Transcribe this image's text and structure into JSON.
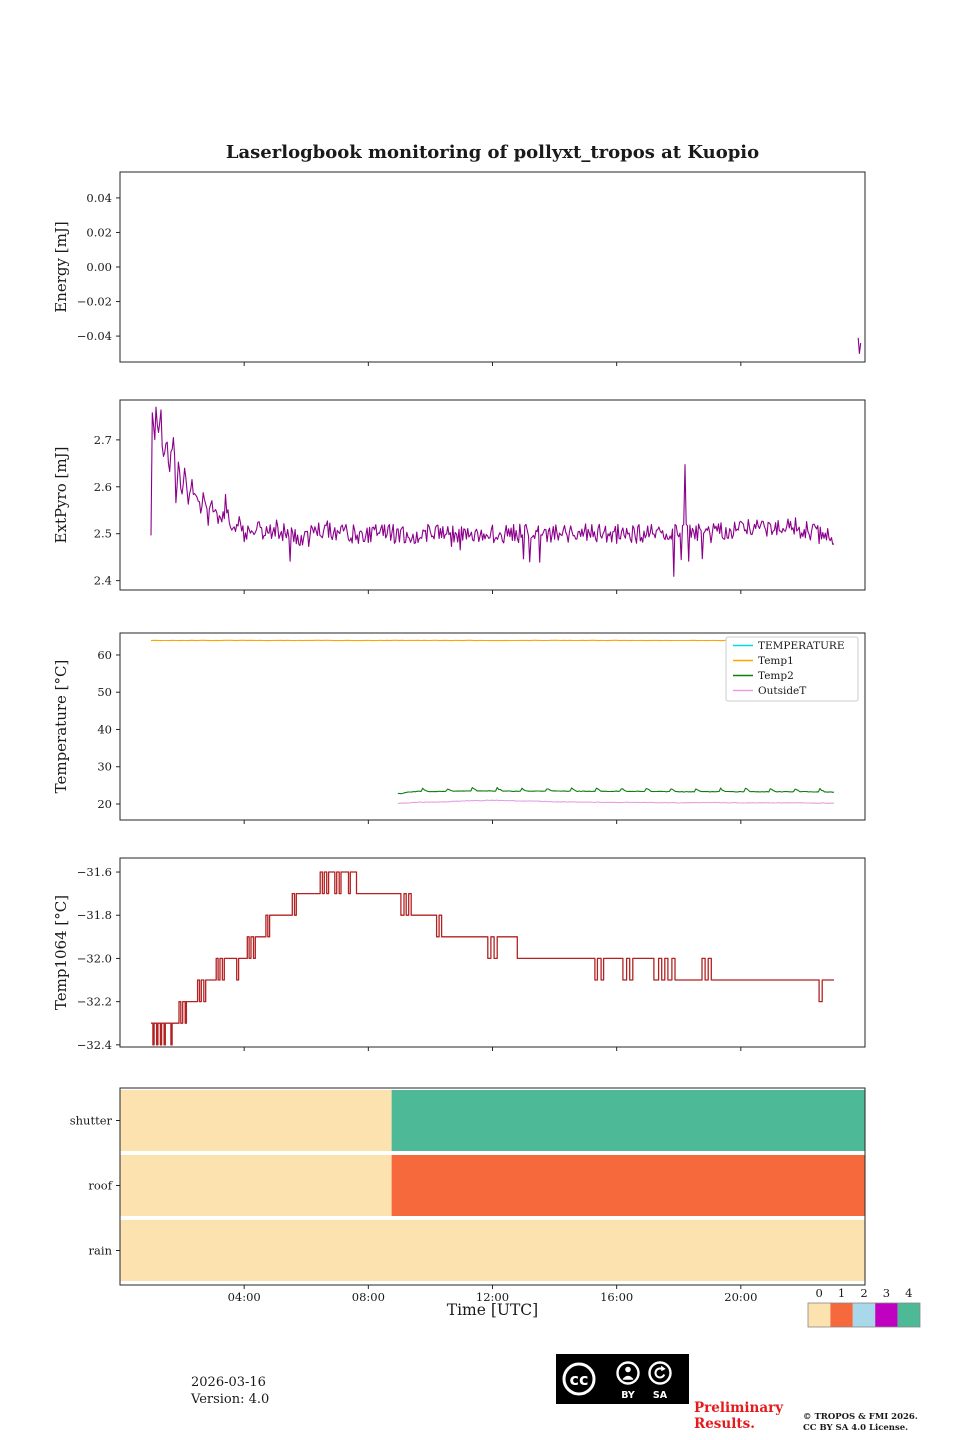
{
  "title": "Laserlogbook monitoring of pollyxt_tropos at Kuopio",
  "x_axis": {
    "label": "Time [UTC]",
    "xlim": [
      0,
      24
    ],
    "ticks": [
      4,
      8,
      12,
      16,
      20
    ],
    "tick_labels": [
      "04:00",
      "08:00",
      "12:00",
      "16:00",
      "20:00"
    ]
  },
  "colors": {
    "frame": "#262626",
    "purple": "#8b008b",
    "firebrick": "#b22222",
    "cyan": "#00dbdb",
    "orange": "#ffa500",
    "green": "#0f7d0f",
    "violet": "#e79fe3",
    "preliminary_red": "#e41a1c",
    "status_values": [
      "#fce2ae",
      "#f5693d",
      "#a8d8ea",
      "#c001c0",
      "#4db997"
    ]
  },
  "chart_data": [
    {
      "type": "line",
      "ylabel": "Energy [mJ]",
      "ylim": [
        -0.055,
        0.055
      ],
      "yticks": [
        0.04,
        0.02,
        0,
        -0.02,
        -0.04
      ],
      "ytick_labels": [
        "0.04",
        "0.02",
        "0.00",
        "−0.02",
        "−0.04"
      ],
      "series": [
        {
          "name": "Energy",
          "color": "#8b008b",
          "points": [
            [
              23.78,
              -0.041
            ],
            [
              23.82,
              -0.05
            ],
            [
              23.86,
              -0.044
            ]
          ]
        }
      ]
    },
    {
      "type": "line",
      "ylabel": "ExtPyro [mJ]",
      "ylim": [
        2.38,
        2.785
      ],
      "yticks": [
        2.7,
        2.6,
        2.5,
        2.4
      ],
      "ytick_labels": [
        "2.7",
        "2.6",
        "2.5",
        "2.4"
      ],
      "series": [
        {
          "name": "ExtPyro",
          "color": "#8b008b",
          "range": [
            1.0,
            23.0
          ],
          "step": 0.04,
          "noise": 0.021,
          "spike": 0.085,
          "anchors": [
            [
              1.0,
              2.5
            ],
            [
              1.03,
              2.78
            ],
            [
              1.1,
              2.7
            ],
            [
              1.16,
              2.76
            ],
            [
              1.24,
              2.72
            ],
            [
              1.3,
              2.77
            ],
            [
              1.4,
              2.66
            ],
            [
              1.5,
              2.71
            ],
            [
              1.6,
              2.63
            ],
            [
              1.7,
              2.71
            ],
            [
              1.8,
              2.61
            ],
            [
              1.9,
              2.65
            ],
            [
              2.0,
              2.59
            ],
            [
              2.1,
              2.63
            ],
            [
              2.2,
              2.58
            ],
            [
              2.3,
              2.62
            ],
            [
              2.4,
              2.57
            ],
            [
              2.5,
              2.6
            ],
            [
              2.6,
              2.55
            ],
            [
              2.7,
              2.58
            ],
            [
              2.85,
              2.53
            ],
            [
              3.0,
              2.56
            ],
            [
              3.2,
              2.52
            ],
            [
              3.4,
              2.55
            ],
            [
              3.6,
              2.51
            ],
            [
              3.8,
              2.53
            ],
            [
              4.0,
              2.5
            ],
            [
              4.3,
              2.52
            ],
            [
              4.6,
              2.5
            ],
            [
              5.0,
              2.51
            ],
            [
              5.5,
              2.5
            ],
            [
              6.0,
              2.49
            ],
            [
              6.5,
              2.51
            ],
            [
              7.0,
              2.5
            ],
            [
              8.0,
              2.5
            ],
            [
              9.0,
              2.5
            ],
            [
              10.0,
              2.5
            ],
            [
              11.0,
              2.5
            ],
            [
              12.0,
              2.5
            ],
            [
              13.0,
              2.5
            ],
            [
              14.0,
              2.5
            ],
            [
              15.0,
              2.5
            ],
            [
              16.0,
              2.5
            ],
            [
              17.0,
              2.5
            ],
            [
              18.0,
              2.5
            ],
            [
              18.16,
              2.5
            ],
            [
              18.2,
              2.63
            ],
            [
              18.24,
              2.5
            ],
            [
              19.0,
              2.5
            ],
            [
              20.0,
              2.51
            ],
            [
              20.5,
              2.52
            ],
            [
              21.0,
              2.51
            ],
            [
              21.5,
              2.52
            ],
            [
              22.0,
              2.51
            ],
            [
              22.5,
              2.5
            ],
            [
              23.0,
              2.49
            ]
          ]
        }
      ]
    },
    {
      "type": "line",
      "ylabel": "Temperature [°C]",
      "ylim": [
        15.7,
        65.9
      ],
      "yticks": [
        60,
        50,
        40,
        30,
        20
      ],
      "ytick_labels": [
        "60",
        "50",
        "40",
        "30",
        "20"
      ],
      "legend": [
        {
          "label": "TEMPERATURE",
          "color": "#00dbdb"
        },
        {
          "label": "Temp1",
          "color": "#ffa500"
        },
        {
          "label": "Temp2",
          "color": "#0f7d0f"
        },
        {
          "label": "OutsideT",
          "color": "#e79fe3"
        }
      ],
      "series": [
        {
          "name": "Temp1",
          "color": "#ffa500",
          "range": [
            1.0,
            23.0
          ],
          "step": 0.1,
          "noise": 0.05,
          "anchors": [
            [
              1,
              63.9
            ],
            [
              23,
              63.9
            ]
          ]
        },
        {
          "name": "Temp2",
          "color": "#0f7d0f",
          "range": [
            8.95,
            23.0
          ],
          "step": 0.05,
          "noise": 0.06,
          "bump": {
            "interval": 0.8,
            "width": 0.2,
            "height": 1.0
          },
          "anchors": [
            [
              8.95,
              22.2
            ],
            [
              9.2,
              23.1
            ],
            [
              9.6,
              23.4
            ],
            [
              10,
              23.3
            ],
            [
              11,
              23.5
            ],
            [
              12,
              23.5
            ],
            [
              13,
              23.4
            ],
            [
              14,
              23.5
            ],
            [
              15,
              23.4
            ],
            [
              16,
              23.4
            ],
            [
              17,
              23.4
            ],
            [
              18,
              23.3
            ],
            [
              19,
              23.3
            ],
            [
              20,
              23.3
            ],
            [
              21,
              23.3
            ],
            [
              22,
              23.3
            ],
            [
              23,
              23.2
            ]
          ]
        },
        {
          "name": "OutsideT",
          "color": "#e79fe3",
          "range": [
            8.95,
            23.0
          ],
          "step": 0.05,
          "noise": 0.07,
          "anchors": [
            [
              8.95,
              20.2
            ],
            [
              9.5,
              20.4
            ],
            [
              10,
              20.5
            ],
            [
              10.5,
              20.6
            ],
            [
              11,
              20.8
            ],
            [
              11.5,
              20.9
            ],
            [
              12,
              21.0
            ],
            [
              12.5,
              20.9
            ],
            [
              13,
              20.8
            ],
            [
              13.5,
              20.7
            ],
            [
              14,
              20.6
            ],
            [
              15,
              20.5
            ],
            [
              16,
              20.4
            ],
            [
              17,
              20.4
            ],
            [
              18,
              20.3
            ],
            [
              19,
              20.4
            ],
            [
              20,
              20.3
            ],
            [
              21,
              20.3
            ],
            [
              22,
              20.3
            ],
            [
              23,
              20.2
            ]
          ]
        }
      ]
    },
    {
      "type": "line",
      "ylabel": "Temp1064 [°C]",
      "ylim": [
        -32.41,
        -31.535
      ],
      "yticks": [
        -31.6,
        -31.8,
        -32.0,
        -32.2,
        -32.4
      ],
      "ytick_labels": [
        "−31.6",
        "−31.8",
        "−32.0",
        "−32.2",
        "−32.4"
      ],
      "series": [
        {
          "name": "Temp1064",
          "color": "#b22222",
          "steps": [
            [
              1.0,
              -32.3
            ],
            [
              1.06,
              -32.4
            ],
            [
              1.1,
              -32.3
            ],
            [
              1.18,
              -32.4
            ],
            [
              1.22,
              -32.3
            ],
            [
              1.3,
              -32.4
            ],
            [
              1.34,
              -32.3
            ],
            [
              1.42,
              -32.4
            ],
            [
              1.46,
              -32.3
            ],
            [
              1.6,
              -32.3
            ],
            [
              1.64,
              -32.4
            ],
            [
              1.68,
              -32.3
            ],
            [
              1.9,
              -32.2
            ],
            [
              1.96,
              -32.3
            ],
            [
              2.02,
              -32.2
            ],
            [
              2.1,
              -32.3
            ],
            [
              2.14,
              -32.2
            ],
            [
              2.4,
              -32.2
            ],
            [
              2.5,
              -32.1
            ],
            [
              2.56,
              -32.2
            ],
            [
              2.62,
              -32.1
            ],
            [
              2.7,
              -32.2
            ],
            [
              2.76,
              -32.1
            ],
            [
              3.0,
              -32.1
            ],
            [
              3.1,
              -32.0
            ],
            [
              3.16,
              -32.1
            ],
            [
              3.22,
              -32.0
            ],
            [
              3.3,
              -32.1
            ],
            [
              3.36,
              -32.0
            ],
            [
              3.7,
              -32.0
            ],
            [
              3.76,
              -32.1
            ],
            [
              3.82,
              -32.0
            ],
            [
              4.1,
              -31.9
            ],
            [
              4.16,
              -32.0
            ],
            [
              4.22,
              -31.9
            ],
            [
              4.3,
              -32.0
            ],
            [
              4.36,
              -31.9
            ],
            [
              4.7,
              -31.8
            ],
            [
              4.76,
              -31.9
            ],
            [
              4.82,
              -31.8
            ],
            [
              5.4,
              -31.8
            ],
            [
              5.55,
              -31.7
            ],
            [
              5.62,
              -31.8
            ],
            [
              5.68,
              -31.7
            ],
            [
              6.2,
              -31.7
            ],
            [
              6.45,
              -31.6
            ],
            [
              6.52,
              -31.7
            ],
            [
              6.58,
              -31.6
            ],
            [
              6.66,
              -31.7
            ],
            [
              6.72,
              -31.6
            ],
            [
              6.85,
              -31.6
            ],
            [
              6.92,
              -31.7
            ],
            [
              6.98,
              -31.6
            ],
            [
              7.06,
              -31.7
            ],
            [
              7.12,
              -31.6
            ],
            [
              7.3,
              -31.6
            ],
            [
              7.36,
              -31.7
            ],
            [
              7.42,
              -31.6
            ],
            [
              7.55,
              -31.6
            ],
            [
              7.62,
              -31.7
            ],
            [
              8.9,
              -31.7
            ],
            [
              9.05,
              -31.8
            ],
            [
              9.15,
              -31.7
            ],
            [
              9.22,
              -31.8
            ],
            [
              9.3,
              -31.7
            ],
            [
              9.38,
              -31.8
            ],
            [
              10.1,
              -31.8
            ],
            [
              10.2,
              -31.9
            ],
            [
              10.28,
              -31.8
            ],
            [
              10.36,
              -31.9
            ],
            [
              11.7,
              -31.9
            ],
            [
              11.85,
              -32.0
            ],
            [
              11.95,
              -31.9
            ],
            [
              12.05,
              -32.0
            ],
            [
              12.15,
              -31.9
            ],
            [
              12.75,
              -31.9
            ],
            [
              12.8,
              -32.0
            ],
            [
              15.2,
              -32.0
            ],
            [
              15.3,
              -32.1
            ],
            [
              15.38,
              -32.0
            ],
            [
              15.5,
              -32.1
            ],
            [
              15.58,
              -32.0
            ],
            [
              16.1,
              -32.0
            ],
            [
              16.2,
              -32.1
            ],
            [
              16.32,
              -32.0
            ],
            [
              16.42,
              -32.1
            ],
            [
              16.52,
              -32.0
            ],
            [
              17.1,
              -32.0
            ],
            [
              17.2,
              -32.1
            ],
            [
              17.35,
              -32.0
            ],
            [
              17.45,
              -32.1
            ],
            [
              17.55,
              -32.0
            ],
            [
              17.65,
              -32.1
            ],
            [
              17.78,
              -32.0
            ],
            [
              17.88,
              -32.1
            ],
            [
              18.6,
              -32.1
            ],
            [
              18.75,
              -32.0
            ],
            [
              18.85,
              -32.1
            ],
            [
              18.95,
              -32.0
            ],
            [
              19.05,
              -32.1
            ],
            [
              22.45,
              -32.1
            ],
            [
              22.52,
              -32.2
            ],
            [
              22.62,
              -32.1
            ],
            [
              23.0,
              -32.1
            ]
          ]
        }
      ]
    },
    {
      "type": "status",
      "categories": [
        "shutter",
        "roof",
        "rain"
      ],
      "value_colors": [
        "#fce2ae",
        "#f5693d",
        "#a8d8ea",
        "#c001c0",
        "#4db997"
      ],
      "rows": {
        "shutter": [
          {
            "start": 0,
            "end": 8.75,
            "value": 0
          },
          {
            "start": 8.75,
            "end": 24,
            "value": 4
          }
        ],
        "roof": [
          {
            "start": 0,
            "end": 8.75,
            "value": 0
          },
          {
            "start": 8.75,
            "end": 24,
            "value": 1
          }
        ],
        "rain": [
          {
            "start": 0,
            "end": 24,
            "value": 0
          }
        ]
      },
      "colorbar_labels": [
        "0",
        "1",
        "2",
        "3",
        "4"
      ]
    }
  ],
  "footer": {
    "date": "2026-03-16",
    "version": "Version: 4.0",
    "cc": {
      "logo": "cc",
      "by": "BY",
      "sa": "SA"
    },
    "preliminary": [
      "Preliminary",
      "Results."
    ],
    "copyright": [
      "© TROPOS & FMI 2026.",
      "CC BY SA 4.0 License."
    ]
  }
}
